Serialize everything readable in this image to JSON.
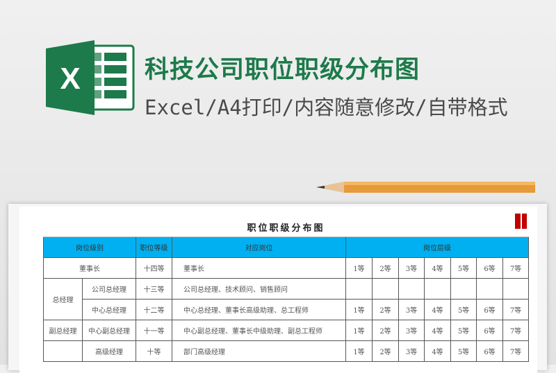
{
  "banner": {
    "title": "科技公司职位职级分布图",
    "subtitle": "Excel/A4打印/内容随意修改/自带格式",
    "logo_letter": "X",
    "brand_color": "#1d7a4a"
  },
  "sheet": {
    "title": "职位职级分布图",
    "headers": {
      "level_group": "岗位级别",
      "grade": "职位等级",
      "positions": "对应岗位",
      "tiers": "岗位层级"
    },
    "header_color": "#00b0f0",
    "rows": [
      {
        "group": "董事长",
        "sub": "",
        "grade": "十四等",
        "positions": "董事长",
        "tiers": [
          "1等",
          "2等",
          "3等",
          "4等",
          "5等",
          "6等",
          "7等"
        ]
      },
      {
        "group": "总经理",
        "sub": "公司总经理",
        "grade": "十三等",
        "positions": "公司总经理、技术顾问、销售顾问",
        "tiers": [
          "",
          "",
          "",
          "",
          "",
          "",
          ""
        ]
      },
      {
        "group": "",
        "sub": "中心总经理",
        "grade": "十二等",
        "positions": "中心总经理、董事长高级助理、总工程师",
        "tiers": [
          "1等",
          "2等",
          "3等",
          "4等",
          "5等",
          "6等",
          "7等"
        ]
      },
      {
        "group": "副总经理",
        "sub": "中心副总经理",
        "grade": "十一等",
        "positions": "中心副总经理、董事长中级助理、副总工程师",
        "tiers": [
          "1等",
          "2等",
          "3等",
          "4等",
          "5等",
          "6等",
          "7等"
        ]
      },
      {
        "group": "",
        "sub": "高级经理",
        "grade": "十等",
        "positions": "部门高级经理",
        "tiers": [
          "1等",
          "2等",
          "3等",
          "4等",
          "5等",
          "6等",
          "7等"
        ]
      }
    ]
  }
}
